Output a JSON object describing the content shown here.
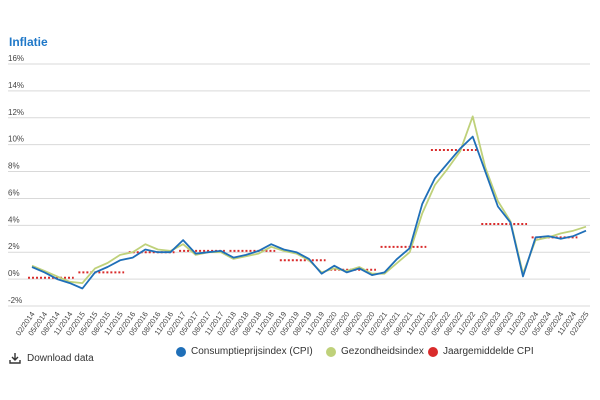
{
  "title": "Inflatie",
  "download_label": "Download data",
  "chart_data": {
    "type": "line",
    "ylim": [
      -2,
      16
    ],
    "ytick_labels": [
      "-2%",
      "0%",
      "2%",
      "4%",
      "6%",
      "8%",
      "10%",
      "12%",
      "14%",
      "16%"
    ],
    "yticks": [
      -2,
      0,
      2,
      4,
      6,
      8,
      10,
      12,
      14,
      16
    ],
    "grid": true,
    "legend_position": "bottom",
    "x_categories": [
      "02/2014",
      "05/2014",
      "08/2014",
      "11/2014",
      "02/2015",
      "05/2015",
      "08/2015",
      "11/2015",
      "02/2016",
      "05/2016",
      "08/2016",
      "11/2016",
      "02/2017",
      "05/2017",
      "08/2017",
      "11/2017",
      "02/2018",
      "05/2018",
      "08/2018",
      "11/2018",
      "02/2019",
      "05/2019",
      "08/2019",
      "11/2019",
      "02/2020",
      "05/2020",
      "08/2020",
      "11/2020",
      "02/2021",
      "05/2021",
      "08/2021",
      "11/2021",
      "02/2022",
      "05/2022",
      "08/2022",
      "11/2022",
      "02/2023",
      "05/2023",
      "08/2023",
      "11/2023",
      "02/2024",
      "05/2024",
      "08/2024",
      "11/2024",
      "02/2025"
    ],
    "series": [
      {
        "name": "Consumptieprijsindex (CPI)",
        "color": "#1f6fb8",
        "values": [
          0.9,
          0.5,
          0.0,
          -0.3,
          -0.7,
          0.5,
          0.9,
          1.4,
          1.6,
          2.2,
          2.0,
          2.0,
          2.9,
          1.9,
          2.0,
          2.1,
          1.6,
          1.8,
          2.1,
          2.6,
          2.2,
          2.0,
          1.5,
          0.4,
          1.0,
          0.5,
          0.8,
          0.3,
          0.5,
          1.5,
          2.3,
          5.6,
          7.5,
          8.6,
          9.7,
          10.6,
          8.0,
          5.4,
          4.2,
          0.2,
          3.1,
          3.2,
          3.0,
          3.2,
          3.6
        ]
      },
      {
        "name": "Gezondheidsindex",
        "color": "#bfd17a",
        "values": [
          1.0,
          0.6,
          0.2,
          -0.2,
          -0.3,
          0.8,
          1.2,
          1.8,
          2.0,
          2.6,
          2.2,
          2.1,
          2.6,
          1.8,
          2.0,
          2.0,
          1.5,
          1.7,
          1.9,
          2.4,
          2.1,
          1.9,
          1.4,
          0.5,
          0.8,
          0.6,
          0.9,
          0.4,
          0.4,
          1.2,
          2.0,
          4.9,
          7.0,
          8.2,
          9.5,
          12.1,
          8.3,
          5.8,
          4.3,
          0.4,
          2.9,
          3.1,
          3.4,
          3.6,
          3.9
        ]
      },
      {
        "name": "Jaargemiddelde CPI",
        "color": "#d92b2b",
        "style": "dotted",
        "segments": [
          {
            "from": "02/2014",
            "to": "11/2014",
            "y": 0.1
          },
          {
            "from": "02/2015",
            "to": "11/2015",
            "y": 0.5
          },
          {
            "from": "02/2016",
            "to": "11/2016",
            "y": 2.0
          },
          {
            "from": "02/2017",
            "to": "11/2017",
            "y": 2.1
          },
          {
            "from": "02/2018",
            "to": "11/2018",
            "y": 2.1
          },
          {
            "from": "02/2019",
            "to": "11/2019",
            "y": 1.4
          },
          {
            "from": "02/2020",
            "to": "11/2020",
            "y": 0.7
          },
          {
            "from": "02/2021",
            "to": "11/2021",
            "y": 2.4
          },
          {
            "from": "02/2022",
            "to": "11/2022",
            "y": 9.6
          },
          {
            "from": "02/2023",
            "to": "11/2023",
            "y": 4.1
          },
          {
            "from": "02/2024",
            "to": "11/2024",
            "y": 3.1
          }
        ]
      }
    ]
  }
}
